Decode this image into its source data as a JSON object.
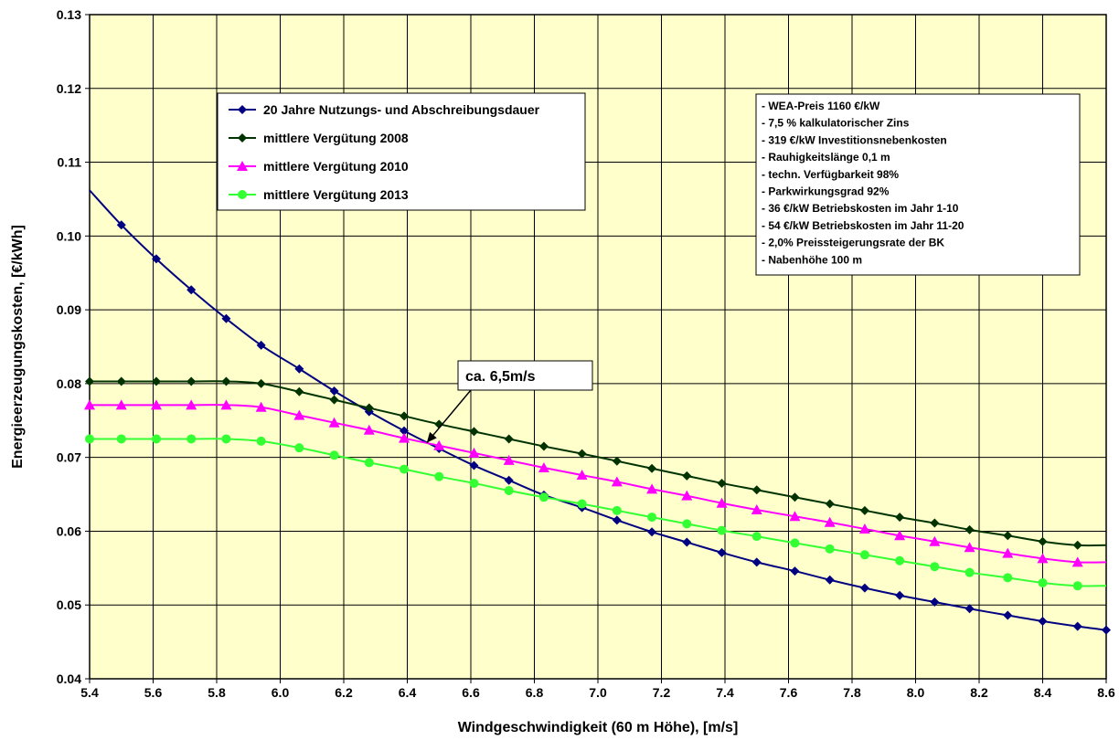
{
  "chart_data": {
    "type": "line",
    "xlabel": "Windgeschwindigkeit (60 m Höhe), [m/s]",
    "ylabel": "Energieerzeugungskosten, [€/kWh]",
    "xlim": [
      5.4,
      8.6
    ],
    "ylim": [
      0.04,
      0.13
    ],
    "x_ticks": [
      "5.4",
      "5.6",
      "5.8",
      "6.0",
      "6.2",
      "6.4",
      "6.6",
      "6.8",
      "7.0",
      "7.2",
      "7.4",
      "7.6",
      "7.8",
      "8.0",
      "8.2",
      "8.4",
      "8.6"
    ],
    "y_ticks": [
      "0.04",
      "0.05",
      "0.06",
      "0.07",
      "0.08",
      "0.09",
      "0.10",
      "0.11",
      "0.12",
      "0.13"
    ],
    "grid": true,
    "plot_background": "#ffffcc",
    "legend_position": "top-left",
    "x": [
      5.4,
      5.5,
      5.61,
      5.72,
      5.83,
      5.94,
      6.06,
      6.17,
      6.28,
      6.39,
      6.5,
      6.61,
      6.72,
      6.83,
      6.95,
      7.06,
      7.17,
      7.28,
      7.39,
      7.5,
      7.62,
      7.73,
      7.84,
      7.95,
      8.06,
      8.17,
      8.29,
      8.4,
      8.51,
      8.6
    ],
    "series": [
      {
        "name": "20 Jahre Nutzungs- und Abschreibungsdauer",
        "color": "#000080",
        "marker": "diamond",
        "values": [
          0.1062,
          0.1015,
          0.0969,
          0.0927,
          0.0888,
          0.0852,
          0.082,
          0.079,
          0.0762,
          0.0736,
          0.0712,
          0.0689,
          0.0669,
          0.0649,
          0.0632,
          0.0615,
          0.0599,
          0.0585,
          0.0571,
          0.0558,
          0.0546,
          0.0534,
          0.0523,
          0.0513,
          0.0504,
          0.0495,
          0.0486,
          0.0478,
          0.0471,
          0.0466
        ],
        "markers_from_index": 1
      },
      {
        "name": "mittlere Vergütung 2008",
        "color": "#003300",
        "marker": "diamond",
        "values": [
          0.0803,
          0.0803,
          0.0803,
          0.0803,
          0.0803,
          0.08,
          0.0789,
          0.0778,
          0.0767,
          0.0756,
          0.0745,
          0.0735,
          0.0725,
          0.0715,
          0.0705,
          0.0695,
          0.0685,
          0.0675,
          0.0665,
          0.0656,
          0.0646,
          0.0637,
          0.0628,
          0.0619,
          0.0611,
          0.0602,
          0.0594,
          0.0586,
          0.0581,
          0.0581
        ],
        "markers_from_index": 0,
        "markers_until_index": 28
      },
      {
        "name": "mittlere Vergütung 2010",
        "color": "#ff00ff",
        "marker": "triangle",
        "values": [
          0.0771,
          0.0771,
          0.0771,
          0.0771,
          0.0771,
          0.0768,
          0.0757,
          0.0747,
          0.0737,
          0.0726,
          0.0716,
          0.0706,
          0.0696,
          0.0686,
          0.0676,
          0.0667,
          0.0657,
          0.0648,
          0.0638,
          0.0629,
          0.062,
          0.0612,
          0.0603,
          0.0594,
          0.0586,
          0.0578,
          0.057,
          0.0563,
          0.0558,
          0.0558
        ],
        "markers_from_index": 0,
        "markers_until_index": 28
      },
      {
        "name": "mittlere Vergütung 2013",
        "color": "#33ff33",
        "marker": "circle",
        "values": [
          0.0725,
          0.0725,
          0.0725,
          0.0725,
          0.0725,
          0.0722,
          0.0713,
          0.0703,
          0.0693,
          0.0684,
          0.0674,
          0.0665,
          0.0655,
          0.0646,
          0.0637,
          0.0628,
          0.0619,
          0.061,
          0.0601,
          0.0593,
          0.0584,
          0.0576,
          0.0568,
          0.056,
          0.0552,
          0.0544,
          0.0537,
          0.053,
          0.0526,
          0.0526
        ],
        "markers_from_index": 0,
        "markers_until_index": 28
      }
    ],
    "annotation": {
      "text": "ca. 6,5m/s",
      "point": [
        6.45,
        0.0715
      ]
    },
    "info_box": [
      "- WEA-Preis 1160 €/kW",
      "- 7,5 % kalkulatorischer Zins",
      "- 319 €/kW Investitionsnebenkosten",
      "- Rauhigkeitslänge 0,1 m",
      "- techn. Verfügbarkeit 98%",
      "- Parkwirkungsgrad 92%",
      "- 36 €/kW Betriebskosten im Jahr 1-10",
      "- 54 €/kW Betriebskosten im Jahr 11-20",
      "- 2,0% Preissteigerungsrate der BK",
      "- Nabenhöhe 100 m"
    ]
  }
}
